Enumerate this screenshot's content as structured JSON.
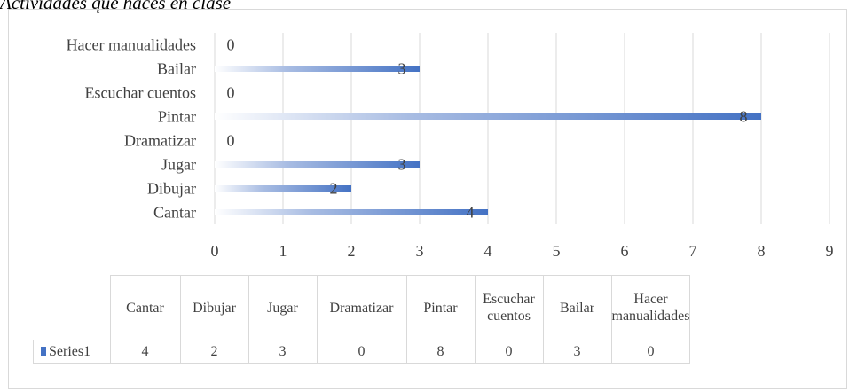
{
  "title": "Actividades que haces en clase",
  "chart_data": {
    "type": "bar",
    "orientation": "horizontal",
    "categories": [
      "Cantar",
      "Dibujar",
      "Jugar",
      "Dramatizar",
      "Pintar",
      "Escuchar cuentos",
      "Bailar",
      "Hacer manualidades"
    ],
    "series": [
      {
        "name": "Series1",
        "values": [
          4,
          2,
          3,
          0,
          8,
          0,
          3,
          0
        ]
      }
    ],
    "xlim": [
      0,
      9
    ],
    "xticks": [
      0,
      1,
      2,
      3,
      4,
      5,
      6,
      7,
      8,
      9
    ],
    "gridlines": true,
    "data_labels": true,
    "bar_color": "#4472c4",
    "data_table": true,
    "table_headers": [
      "Cantar",
      "Dibujar",
      "Jugar",
      "Dramatizar",
      "Pintar",
      "Escuchar cuentos",
      "Bailar",
      "Hacer manualidades"
    ]
  }
}
